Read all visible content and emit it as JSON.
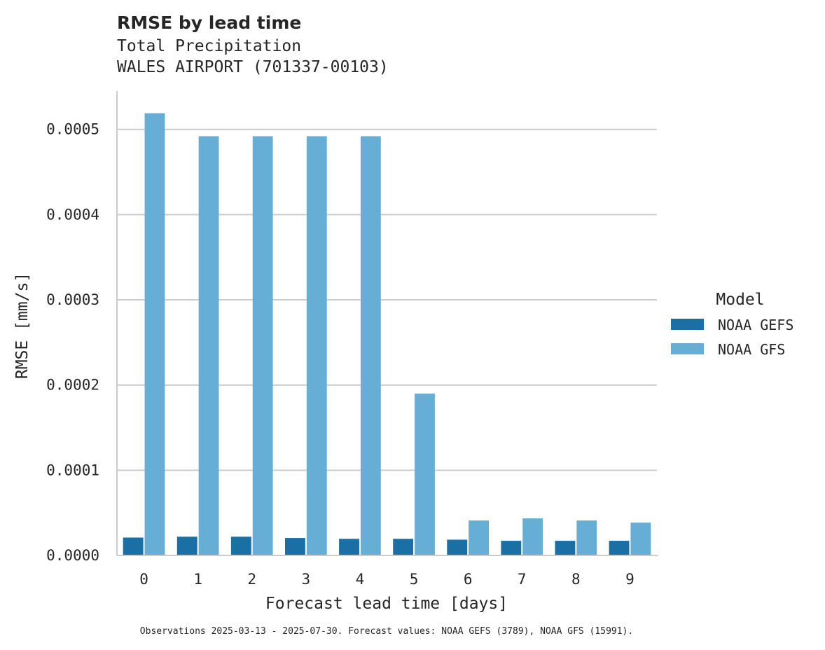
{
  "chart_data": {
    "type": "bar",
    "title": "RMSE by lead time",
    "subtitle_lines": [
      "Total Precipitation",
      "WALES AIRPORT (701337-00103)"
    ],
    "xlabel": "Forecast lead time [days]",
    "ylabel": "RMSE [mm/s]",
    "categories": [
      "0",
      "1",
      "2",
      "3",
      "4",
      "5",
      "6",
      "7",
      "8",
      "9"
    ],
    "yticks": [
      "0.0000",
      "0.0001",
      "0.0002",
      "0.0003",
      "0.0004",
      "0.0005"
    ],
    "ylim": [
      0,
      0.000545
    ],
    "grid": true,
    "legend": {
      "title": "Model",
      "placement": "right"
    },
    "series": [
      {
        "name": "NOAA GEFS",
        "color": "#1a6fa5",
        "values": [
          2.1e-05,
          2.2e-05,
          2.2e-05,
          2.05e-05,
          1.95e-05,
          1.95e-05,
          1.85e-05,
          1.72e-05,
          1.72e-05,
          1.72e-05
        ]
      },
      {
        "name": "NOAA GFS",
        "color": "#67aed6",
        "values": [
          0.000519,
          0.000492,
          0.000492,
          0.000492,
          0.000492,
          0.00019,
          4.1e-05,
          4.35e-05,
          4.1e-05,
          3.85e-05
        ]
      }
    ],
    "footnote": "Observations 2025-03-13 - 2025-07-30. Forecast values: NOAA GEFS (3789), NOAA GFS (15991)."
  }
}
